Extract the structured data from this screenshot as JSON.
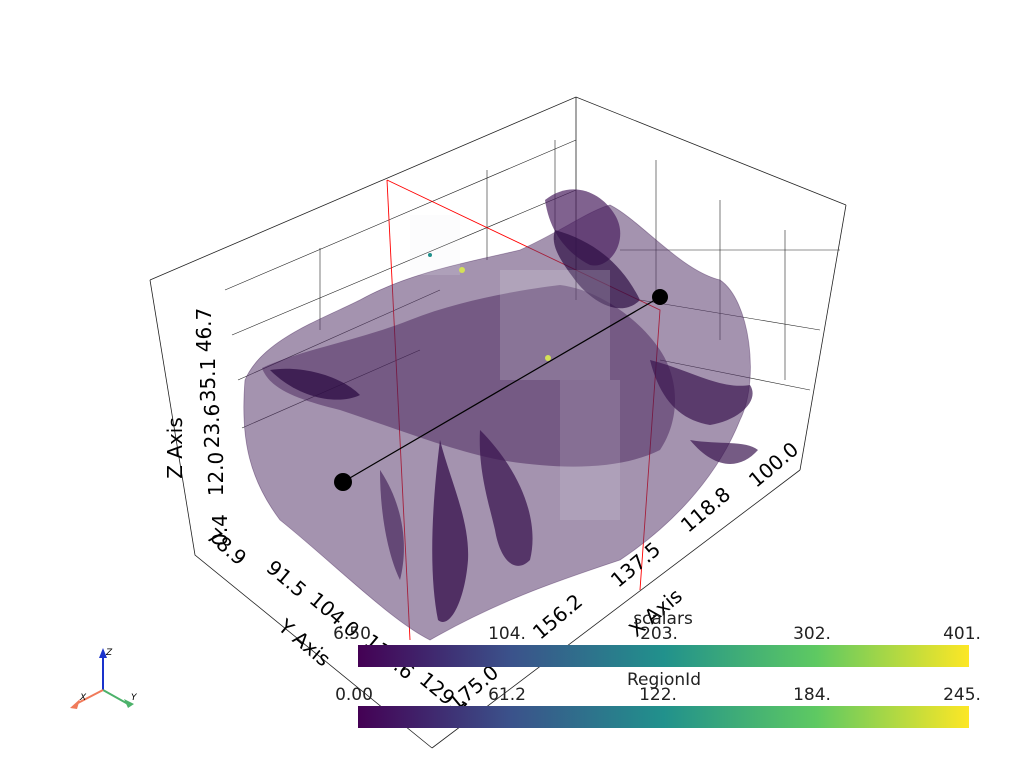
{
  "axes": {
    "x": {
      "title": "X Axis",
      "ticks": [
        "175.0",
        "156.2",
        "137.5",
        "118.8",
        "100.0"
      ]
    },
    "y": {
      "title": "Y Axis",
      "ticks": [
        "78.9",
        "91.5",
        "104.0",
        "116.6",
        "129.1"
      ]
    },
    "z": {
      "title": "Z Axis",
      "ticks": [
        "0.4",
        "12.0",
        "23.6",
        "35.1",
        "46.7"
      ]
    }
  },
  "colorbars": [
    {
      "title": "scalars",
      "ticks": [
        "6.50",
        "104.",
        "203.",
        "302.",
        "401."
      ]
    },
    {
      "title": "RegionId",
      "ticks": [
        "0.00",
        "61.2",
        "122.",
        "184.",
        "245."
      ]
    }
  ],
  "orientation": {
    "x": "X",
    "y": "Y",
    "z": "Z"
  },
  "colors": {
    "surface": "#5a3a6e",
    "surface_dark": "#3b1650",
    "slice_line": "#ff0000",
    "viridis": [
      "#440154",
      "#3b528b",
      "#21918c",
      "#5ec962",
      "#fde725"
    ]
  }
}
